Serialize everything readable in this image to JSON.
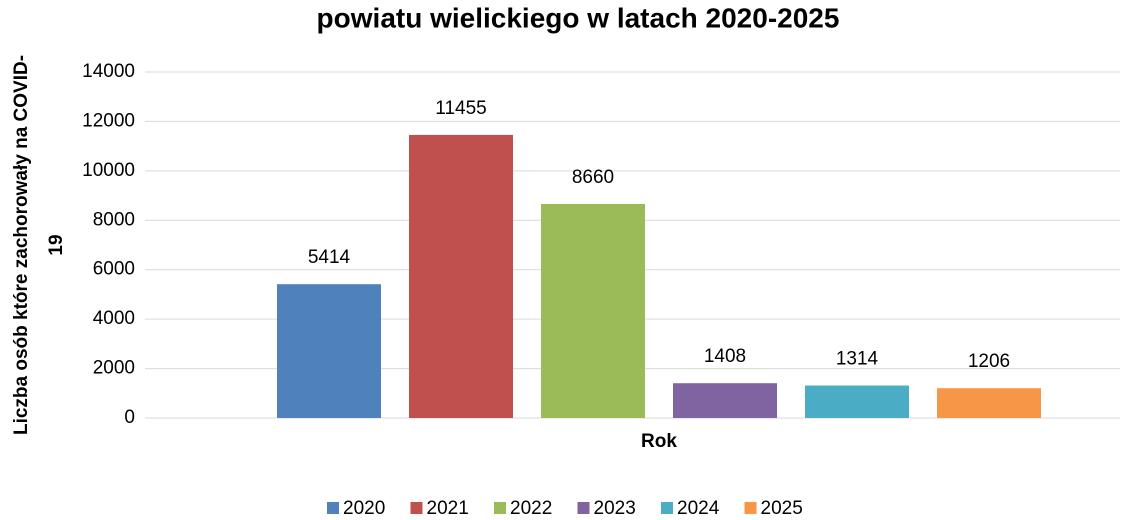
{
  "chart_data": {
    "type": "bar",
    "title": "powiatu wielickiego w latach 2020-2025",
    "y_label": [
      "Liczba osób które zachorowały na COVID-",
      "19"
    ],
    "x_label": "Rok",
    "categories": [
      null
    ],
    "series": [
      {
        "name": "2020",
        "color": "#4f81bd",
        "values": [
          5414
        ]
      },
      {
        "name": "2021",
        "color": "#c0504d",
        "values": [
          11455
        ]
      },
      {
        "name": "2022",
        "color": "#9bbb59",
        "values": [
          8660
        ]
      },
      {
        "name": "2023",
        "color": "#8064a2",
        "values": [
          1408
        ]
      },
      {
        "name": "2024",
        "color": "#4bacc6",
        "values": [
          1314
        ]
      },
      {
        "name": "2025",
        "color": "#f79646",
        "values": [
          1206
        ]
      }
    ],
    "ylim": [
      0,
      14000
    ],
    "yticks": [
      0,
      2000,
      4000,
      6000,
      8000,
      10000,
      12000,
      14000
    ],
    "grid": true,
    "legend": "bottom"
  }
}
